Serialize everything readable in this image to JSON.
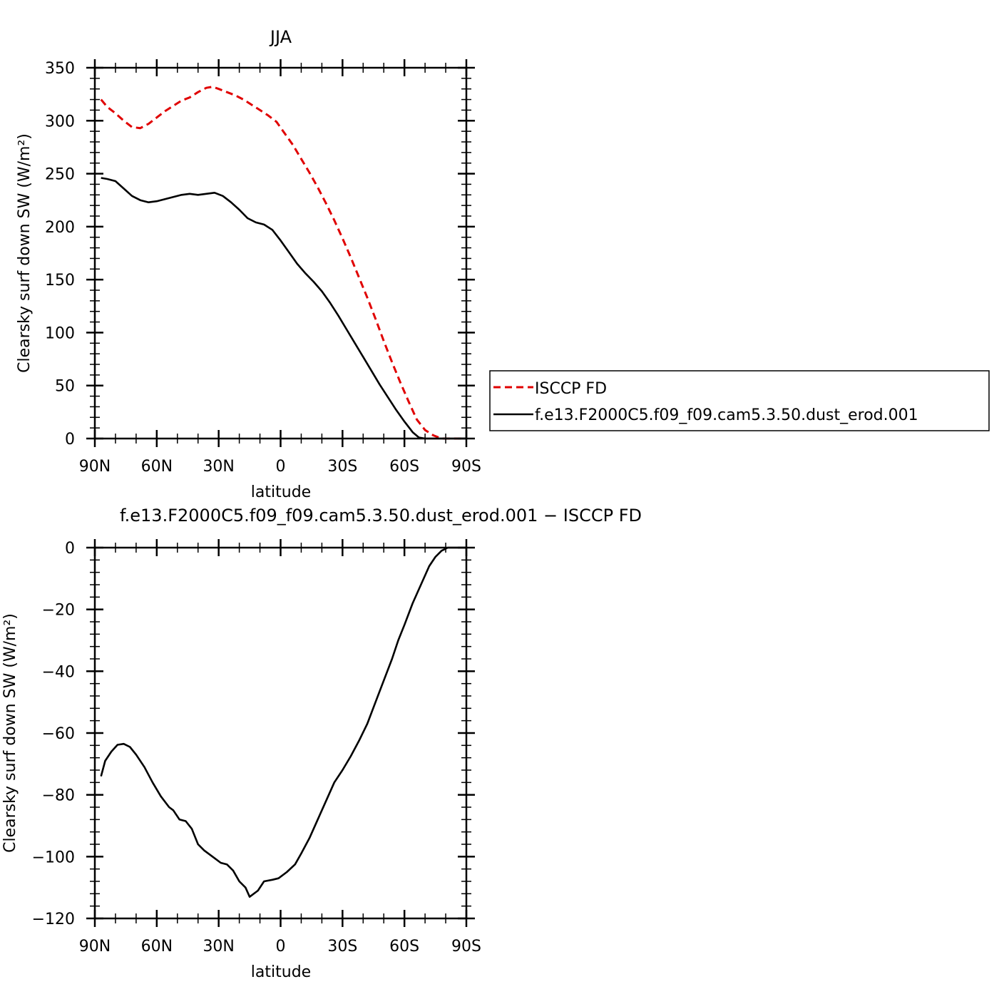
{
  "chart_data": [
    {
      "type": "line",
      "title": "JJA",
      "xlabel": "latitude",
      "ylabel": "Clearsky surf down SW (W/m²)",
      "xlim": [
        90,
        -90
      ],
      "ylim": [
        0,
        350
      ],
      "xticks": [
        {
          "v": 90,
          "label": "90N"
        },
        {
          "v": 60,
          "label": "60N"
        },
        {
          "v": 30,
          "label": "30N"
        },
        {
          "v": 0,
          "label": "0"
        },
        {
          "v": -30,
          "label": "30S"
        },
        {
          "v": -60,
          "label": "60S"
        },
        {
          "v": -90,
          "label": "90S"
        }
      ],
      "yticks": [
        {
          "v": 0,
          "label": "0"
        },
        {
          "v": 50,
          "label": "50"
        },
        {
          "v": 100,
          "label": "100"
        },
        {
          "v": 150,
          "label": "150"
        },
        {
          "v": 200,
          "label": "200"
        },
        {
          "v": 250,
          "label": "250"
        },
        {
          "v": 300,
          "label": "300"
        },
        {
          "v": 350,
          "label": "350"
        }
      ],
      "legend_position": "right",
      "series": [
        {
          "name": "ISCCP FD",
          "color": "#e00000",
          "dash": true,
          "points": [
            [
              87,
              320
            ],
            [
              84,
              313
            ],
            [
              80,
              307
            ],
            [
              76,
              300
            ],
            [
              72,
              294
            ],
            [
              68,
              293
            ],
            [
              64,
              297
            ],
            [
              60,
              303
            ],
            [
              56,
              309
            ],
            [
              52,
              314
            ],
            [
              48,
              319
            ],
            [
              44,
              322
            ],
            [
              40,
              327
            ],
            [
              36,
              331
            ],
            [
              33,
              332
            ],
            [
              30,
              330
            ],
            [
              26,
              327
            ],
            [
              22,
              324
            ],
            [
              18,
              320
            ],
            [
              14,
              315
            ],
            [
              10,
              310
            ],
            [
              6,
              305
            ],
            [
              2,
              299
            ],
            [
              -2,
              288
            ],
            [
              -6,
              277
            ],
            [
              -10,
              264
            ],
            [
              -14,
              251
            ],
            [
              -18,
              237
            ],
            [
              -22,
              222
            ],
            [
              -26,
              206
            ],
            [
              -30,
              189
            ],
            [
              -34,
              171
            ],
            [
              -38,
              152
            ],
            [
              -42,
              133
            ],
            [
              -46,
              113
            ],
            [
              -50,
              92
            ],
            [
              -54,
              72
            ],
            [
              -58,
              53
            ],
            [
              -62,
              35
            ],
            [
              -66,
              18
            ],
            [
              -70,
              8
            ],
            [
              -74,
              3
            ],
            [
              -78,
              0
            ],
            [
              -82,
              0
            ],
            [
              -86,
              0
            ],
            [
              -90,
              0
            ]
          ]
        },
        {
          "name": "f.e13.F2000C5.f09_f09.cam5.3.50.dust_erod.001",
          "color": "#000000",
          "dash": false,
          "points": [
            [
              87,
              246
            ],
            [
              84,
              245
            ],
            [
              80,
              243
            ],
            [
              76,
              236
            ],
            [
              72,
              229
            ],
            [
              68,
              225
            ],
            [
              64,
              223
            ],
            [
              60,
              224
            ],
            [
              56,
              226
            ],
            [
              52,
              228
            ],
            [
              48,
              230
            ],
            [
              44,
              231
            ],
            [
              40,
              230
            ],
            [
              36,
              231
            ],
            [
              32,
              232
            ],
            [
              28,
              229
            ],
            [
              24,
              223
            ],
            [
              20,
              216
            ],
            [
              16,
              208
            ],
            [
              12,
              204
            ],
            [
              8,
              202
            ],
            [
              4,
              197
            ],
            [
              0,
              187
            ],
            [
              -4,
              176
            ],
            [
              -8,
              165
            ],
            [
              -12,
              156
            ],
            [
              -16,
              148
            ],
            [
              -20,
              139
            ],
            [
              -24,
              128
            ],
            [
              -28,
              116
            ],
            [
              -32,
              103
            ],
            [
              -36,
              90
            ],
            [
              -40,
              77
            ],
            [
              -44,
              64
            ],
            [
              -48,
              51
            ],
            [
              -52,
              39
            ],
            [
              -56,
              27
            ],
            [
              -60,
              16
            ],
            [
              -64,
              6
            ],
            [
              -67,
              1
            ],
            [
              -70,
              0
            ],
            [
              -74,
              0
            ],
            [
              -78,
              0
            ],
            [
              -82,
              0
            ],
            [
              -86,
              0
            ],
            [
              -90,
              0
            ]
          ]
        }
      ]
    },
    {
      "type": "line",
      "title": "f.e13.F2000C5.f09_f09.cam5.3.50.dust_erod.001 − ISCCP FD",
      "xlabel": "latitude",
      "ylabel": "Clearsky surf down SW (W/m²)",
      "xlim": [
        90,
        -90
      ],
      "ylim": [
        -120,
        0
      ],
      "xticks": [
        {
          "v": 90,
          "label": "90N"
        },
        {
          "v": 60,
          "label": "60N"
        },
        {
          "v": 30,
          "label": "30N"
        },
        {
          "v": 0,
          "label": "0"
        },
        {
          "v": -30,
          "label": "30S"
        },
        {
          "v": -60,
          "label": "60S"
        },
        {
          "v": -90,
          "label": "90S"
        }
      ],
      "yticks": [
        {
          "v": 0,
          "label": "0"
        },
        {
          "v": -20,
          "label": "−20"
        },
        {
          "v": -40,
          "label": "−40"
        },
        {
          "v": -60,
          "label": "−60"
        },
        {
          "v": -80,
          "label": "−80"
        },
        {
          "v": -100,
          "label": "−100"
        },
        {
          "v": -120,
          "label": "−120"
        }
      ],
      "series": [
        {
          "name": "",
          "color": "#000000",
          "dash": false,
          "points": [
            [
              87,
              -74
            ],
            [
              85,
              -69
            ],
            [
              82,
              -66
            ],
            [
              79,
              -63.8
            ],
            [
              76,
              -63.5
            ],
            [
              73,
              -64.5
            ],
            [
              70,
              -67
            ],
            [
              66,
              -71
            ],
            [
              62,
              -76
            ],
            [
              58,
              -80.5
            ],
            [
              54,
              -84
            ],
            [
              52,
              -85
            ],
            [
              49,
              -88
            ],
            [
              46,
              -88.5
            ],
            [
              43,
              -91
            ],
            [
              40,
              -96
            ],
            [
              37,
              -98
            ],
            [
              33,
              -100
            ],
            [
              29,
              -102
            ],
            [
              26,
              -102.5
            ],
            [
              23,
              -104.5
            ],
            [
              20,
              -108
            ],
            [
              17,
              -110
            ],
            [
              15,
              -113
            ],
            [
              11,
              -111
            ],
            [
              8,
              -108
            ],
            [
              4,
              -107.5
            ],
            [
              1,
              -107
            ],
            [
              -3,
              -105
            ],
            [
              -7,
              -102.5
            ],
            [
              -10,
              -99
            ],
            [
              -14,
              -94
            ],
            [
              -18,
              -88
            ],
            [
              -22,
              -82
            ],
            [
              -26,
              -76
            ],
            [
              -30,
              -72
            ],
            [
              -34,
              -67.5
            ],
            [
              -38,
              -62.5
            ],
            [
              -42,
              -57
            ],
            [
              -46,
              -50
            ],
            [
              -50,
              -43
            ],
            [
              -54,
              -36
            ],
            [
              -57,
              -30
            ],
            [
              -60,
              -25
            ],
            [
              -64,
              -18
            ],
            [
              -68,
              -12
            ],
            [
              -72,
              -6
            ],
            [
              -75,
              -3
            ],
            [
              -78,
              -1
            ],
            [
              -81,
              0
            ],
            [
              -85,
              0
            ],
            [
              -90,
              0
            ]
          ]
        }
      ]
    }
  ]
}
